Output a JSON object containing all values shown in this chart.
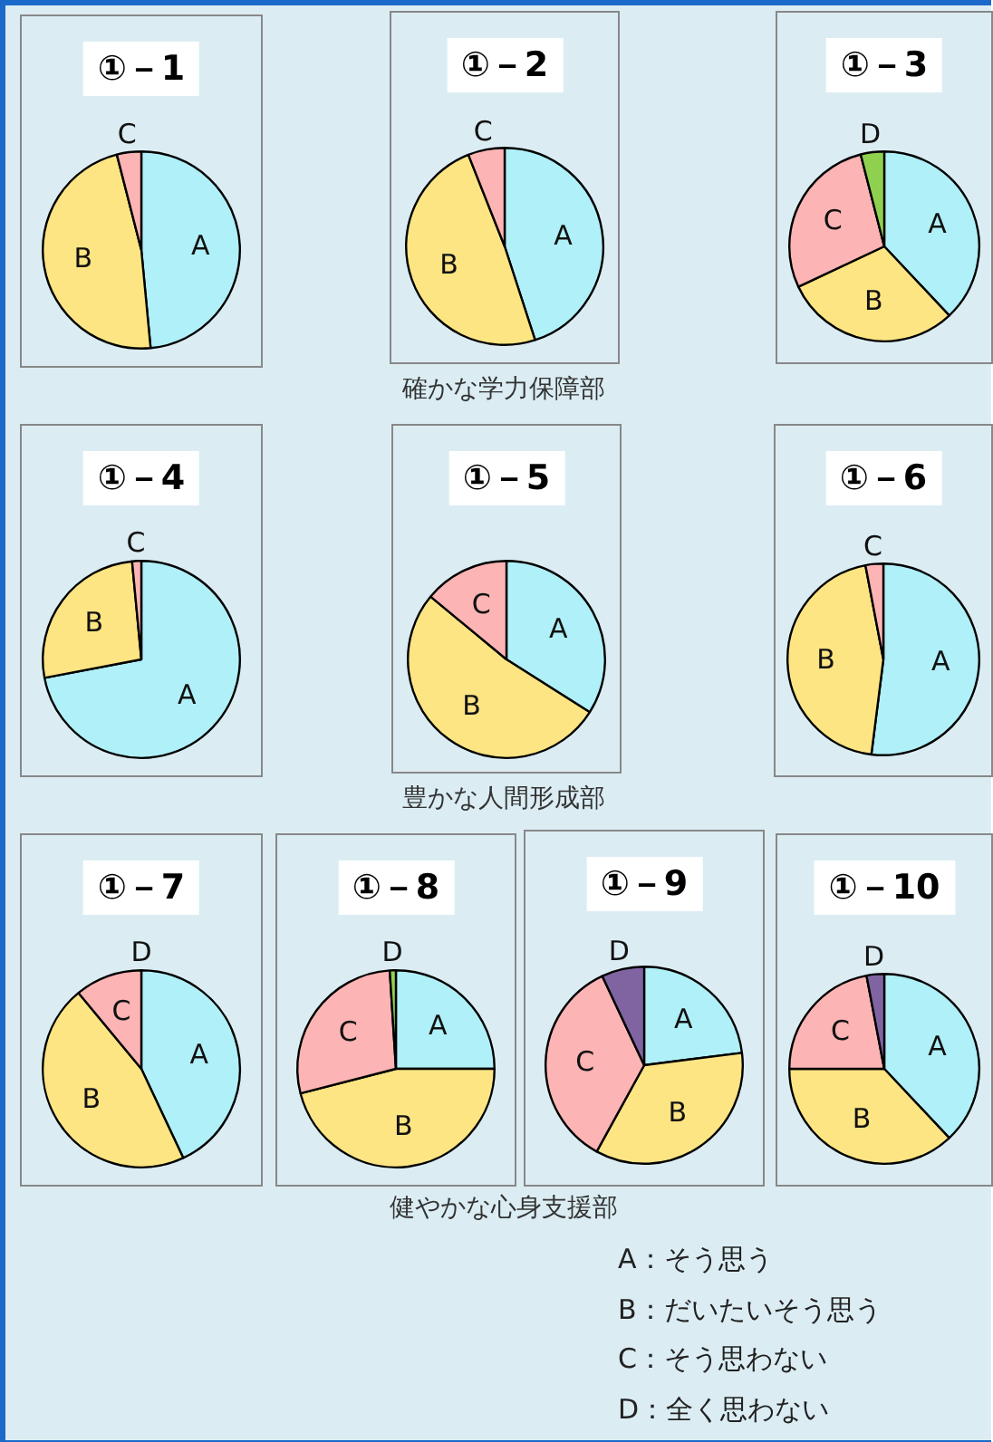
{
  "chart_data": [
    {
      "type": "pie",
      "title": "①－1",
      "categories": [
        "A",
        "B",
        "C"
      ],
      "values": [
        48.5,
        47.5,
        4
      ],
      "colors": [
        "#b0f0f8",
        "#fde583",
        "#fdb4b4"
      ]
    },
    {
      "type": "pie",
      "title": "①－2",
      "categories": [
        "A",
        "B",
        "C"
      ],
      "values": [
        45,
        49,
        6
      ],
      "colors": [
        "#b0f0f8",
        "#fde583",
        "#fdb4b4"
      ],
      "annotations": [
        "確かな学力保障部"
      ]
    },
    {
      "type": "pie",
      "title": "①－3",
      "categories": [
        "A",
        "B",
        "C",
        "D"
      ],
      "values": [
        38,
        30,
        28,
        4
      ],
      "colors": [
        "#b0f0f8",
        "#fde583",
        "#fdb4b4",
        "#8fd14f"
      ]
    },
    {
      "type": "pie",
      "title": "①－4",
      "categories": [
        "A",
        "B",
        "C"
      ],
      "values": [
        72,
        26.5,
        1.5
      ],
      "colors": [
        "#b0f0f8",
        "#fde583",
        "#fdb4b4"
      ]
    },
    {
      "type": "pie",
      "title": "①－5",
      "categories": [
        "A",
        "B",
        "C"
      ],
      "values": [
        34,
        52,
        14
      ],
      "colors": [
        "#b0f0f8",
        "#fde583",
        "#fdb4b4"
      ],
      "annotations": [
        "豊かな人間形成部"
      ]
    },
    {
      "type": "pie",
      "title": "①－6",
      "categories": [
        "A",
        "B",
        "C"
      ],
      "values": [
        52,
        45,
        3
      ],
      "colors": [
        "#b0f0f8",
        "#fde583",
        "#fdb4b4"
      ]
    },
    {
      "type": "pie",
      "title": "①－7",
      "categories": [
        "A",
        "B",
        "C",
        "D"
      ],
      "values": [
        43,
        46,
        11,
        0
      ],
      "colors": [
        "#b0f0f8",
        "#fde583",
        "#fdb4b4",
        "#8064a2"
      ]
    },
    {
      "type": "pie",
      "title": "①－8",
      "categories": [
        "A",
        "B",
        "C",
        "D"
      ],
      "values": [
        25,
        46,
        28,
        1
      ],
      "colors": [
        "#b0f0f8",
        "#fde583",
        "#fdb4b4",
        "#8fd14f"
      ],
      "annotations": [
        "健やかな心身支援部"
      ]
    },
    {
      "type": "pie",
      "title": "①－9",
      "categories": [
        "A",
        "B",
        "C",
        "D"
      ],
      "values": [
        23,
        35,
        35,
        7
      ],
      "colors": [
        "#b0f0f8",
        "#fde583",
        "#fdb4b4",
        "#8064a2"
      ]
    },
    {
      "type": "pie",
      "title": "①－10",
      "categories": [
        "A",
        "B",
        "C",
        "D"
      ],
      "values": [
        38,
        37,
        22,
        3
      ],
      "colors": [
        "#b0f0f8",
        "#fde583",
        "#fdb4b4",
        "#8064a2"
      ]
    },
    {
      "type": "other",
      "annotations": [
        "A：そう思う",
        "B：だいたいそう思う",
        "C：そう思わない",
        "D：全く思わない"
      ]
    }
  ]
}
